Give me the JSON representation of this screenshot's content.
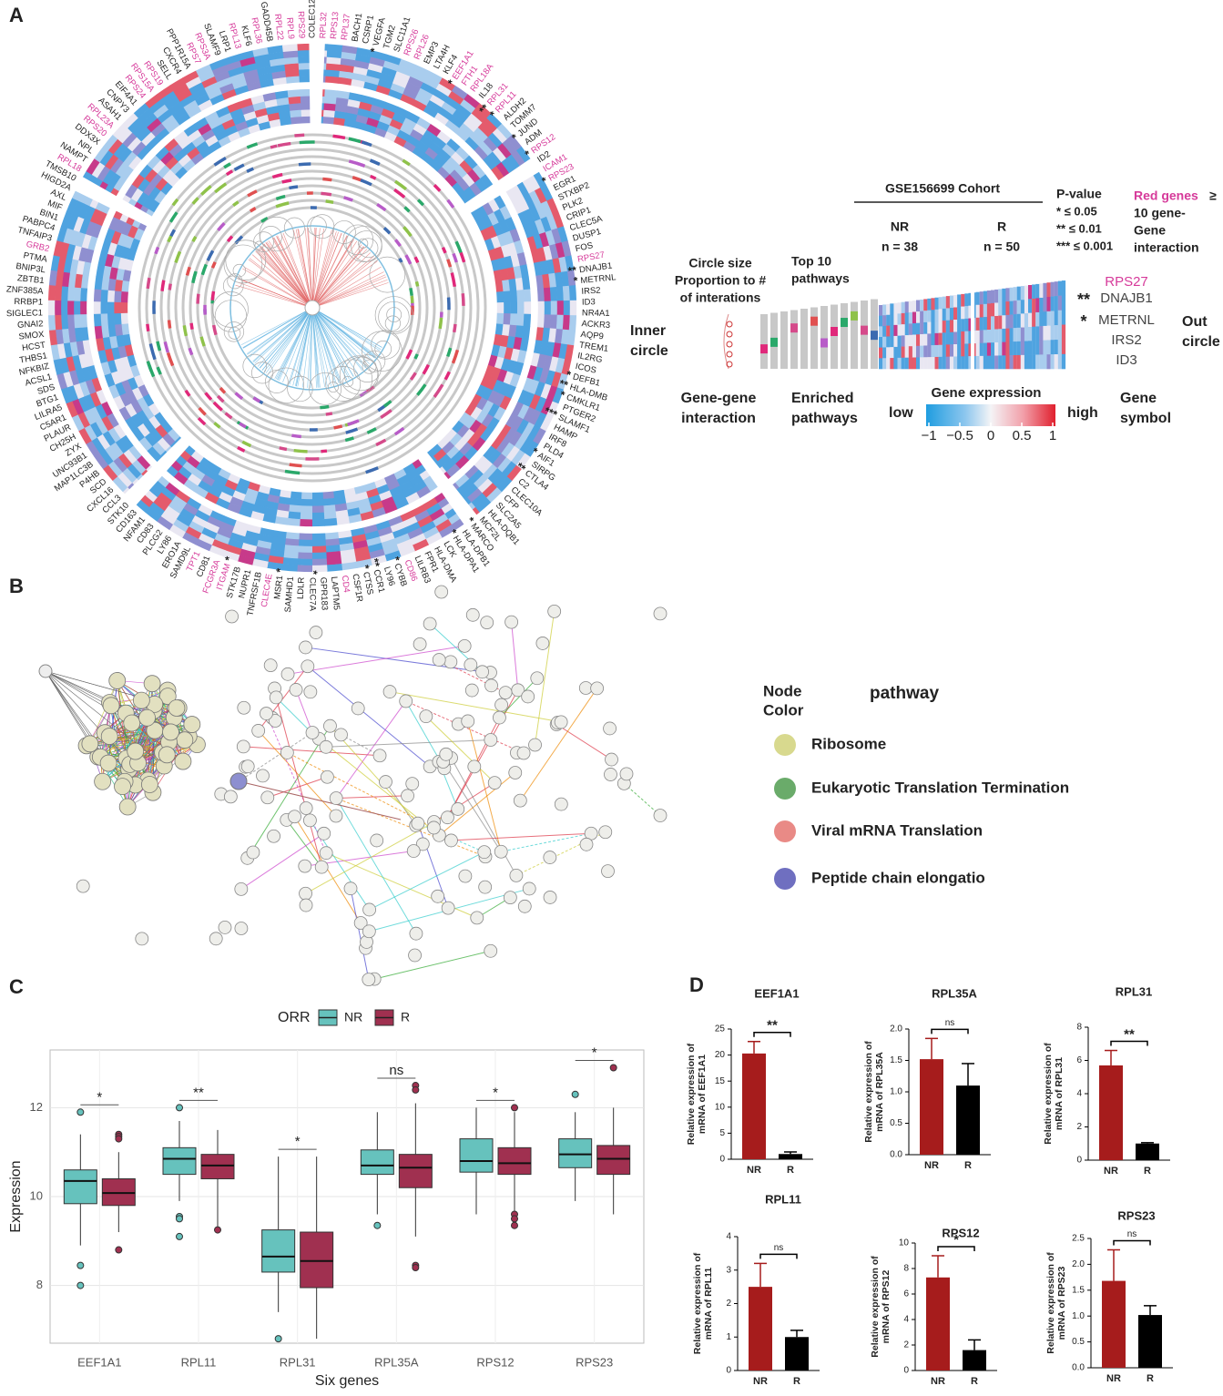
{
  "circos_figure": {
    "panel_label": "A",
    "genes": [
      {
        "name": "COLEC12"
      },
      {
        "name": "RPL32",
        "red": true
      },
      {
        "name": "RPS13",
        "red": true
      },
      {
        "name": "RPL37",
        "red": true
      },
      {
        "name": "BACH1"
      },
      {
        "name": "CSRP1"
      },
      {
        "name": "VEGFA",
        "sig": "*"
      },
      {
        "name": "TGM2"
      },
      {
        "name": "SLC11A1"
      },
      {
        "name": "RPS26",
        "red": true
      },
      {
        "name": "RPL26",
        "red": true
      },
      {
        "name": "EMP3"
      },
      {
        "name": "LTA4H"
      },
      {
        "name": "KLF4"
      },
      {
        "name": "EEF1A1",
        "red": true,
        "sig": "*"
      },
      {
        "name": "FTH1",
        "red": true
      },
      {
        "name": "RPL18A",
        "red": true
      },
      {
        "name": "IL18"
      },
      {
        "name": "RPL31",
        "red": true,
        "sig": "**"
      },
      {
        "name": "RPL11",
        "red": true,
        "sig": "*"
      },
      {
        "name": "ALDH2"
      },
      {
        "name": "TOMM7"
      },
      {
        "name": "JUND",
        "sig": "*"
      },
      {
        "name": "ADM"
      },
      {
        "name": "RPS12",
        "red": true,
        "sig": "*"
      },
      {
        "name": "ID2"
      },
      {
        "name": "ICAM1",
        "red": true
      },
      {
        "name": "RPS23",
        "red": true,
        "sig": "*"
      },
      {
        "name": "EGR1"
      },
      {
        "name": "STXBP2"
      },
      {
        "name": "PLK2"
      },
      {
        "name": "CRIP1"
      },
      {
        "name": "CLEC5A"
      },
      {
        "name": "DUSP1"
      },
      {
        "name": "FOS"
      },
      {
        "name": "RPS27",
        "red": true
      },
      {
        "name": "DNAJB1",
        "sig": "**"
      },
      {
        "name": "METRNL",
        "sig": "*"
      },
      {
        "name": "IRS2"
      },
      {
        "name": "ID3"
      },
      {
        "name": "NR4A1"
      },
      {
        "name": "ACKR3"
      },
      {
        "name": "AQP9"
      },
      {
        "name": "TREM1"
      },
      {
        "name": "IL2RG"
      },
      {
        "name": "ICOS"
      },
      {
        "name": "DEFB1",
        "sig": "*"
      },
      {
        "name": "HLA-DMB",
        "sig": "**"
      },
      {
        "name": "CMKLR1",
        "sig": "*"
      },
      {
        "name": "PTGER2"
      },
      {
        "name": "SLAMF1",
        "sig": "***"
      },
      {
        "name": "HAMP"
      },
      {
        "name": "IRF8"
      },
      {
        "name": "PLD4"
      },
      {
        "name": "AIF1",
        "sig": "*"
      },
      {
        "name": "SIRPG"
      },
      {
        "name": "CTLA4",
        "sig": "**"
      },
      {
        "name": "C2"
      },
      {
        "name": "CLEC10A"
      },
      {
        "name": "CFP"
      },
      {
        "name": "SLC2A5"
      },
      {
        "name": "HLA-DQB1"
      },
      {
        "name": "MCF2L"
      },
      {
        "name": "MARCO",
        "sig": "*"
      },
      {
        "name": "HLA-DPB1"
      },
      {
        "name": "HLA-DPA1",
        "sig": "*"
      },
      {
        "name": "LCK"
      },
      {
        "name": "HLA-DMA"
      },
      {
        "name": "FPR1"
      },
      {
        "name": "LILRB3"
      },
      {
        "name": "CD86",
        "red": true
      },
      {
        "name": "CYBB",
        "sig": "*"
      },
      {
        "name": "LY96"
      },
      {
        "name": "CCR1",
        "sig": "**"
      },
      {
        "name": "CTSS",
        "sig": "*"
      },
      {
        "name": "CSF1R"
      },
      {
        "name": "CD4",
        "red": true
      },
      {
        "name": "LAPTM5"
      },
      {
        "name": "GPR183"
      },
      {
        "name": "CLEC7A",
        "sig": "*"
      },
      {
        "name": "LDLR"
      },
      {
        "name": "SAMHD1"
      },
      {
        "name": "MSR1",
        "sig": "*"
      },
      {
        "name": "CLEC4E",
        "red": true
      },
      {
        "name": "TNFRSF1B"
      },
      {
        "name": "NUPR1"
      },
      {
        "name": "STK17B"
      },
      {
        "name": "ITGAM",
        "red": true,
        "sig": "*"
      },
      {
        "name": "FCGR3A",
        "red": true
      },
      {
        "name": "CD81"
      },
      {
        "name": "TPT1",
        "red": true
      },
      {
        "name": "SAMD9L"
      },
      {
        "name": "ERO1A"
      },
      {
        "name": "LY86"
      },
      {
        "name": "PLCG2"
      },
      {
        "name": "CD83"
      },
      {
        "name": "NFAM1"
      },
      {
        "name": "CD163"
      },
      {
        "name": "STK10"
      },
      {
        "name": "CCL3"
      },
      {
        "name": "CXCL16"
      },
      {
        "name": "SCD"
      },
      {
        "name": "P4HB"
      },
      {
        "name": "MAP1LC3B"
      },
      {
        "name": "UNC93B1"
      },
      {
        "name": "ZYX"
      },
      {
        "name": "CH25H"
      },
      {
        "name": "PLAUR"
      },
      {
        "name": "C5AR1"
      },
      {
        "name": "LILRA5"
      },
      {
        "name": "BTG1"
      },
      {
        "name": "SDS"
      },
      {
        "name": "ACSL1"
      },
      {
        "name": "NFKBIZ"
      },
      {
        "name": "THBS1"
      },
      {
        "name": "HCST"
      },
      {
        "name": "SMOX"
      },
      {
        "name": "GNAI2"
      },
      {
        "name": "SIGLEC1"
      },
      {
        "name": "RRBP1"
      },
      {
        "name": "ZNF385A"
      },
      {
        "name": "ZBTB1"
      },
      {
        "name": "BNIP3L"
      },
      {
        "name": "PTMA"
      },
      {
        "name": "GRB2",
        "red": true
      },
      {
        "name": "TNFAIP3"
      },
      {
        "name": "PABPC4"
      },
      {
        "name": "BIN1"
      },
      {
        "name": "MIF"
      },
      {
        "name": "AXL"
      },
      {
        "name": "HIGD2A"
      },
      {
        "name": "TMSB10"
      },
      {
        "name": "RPL18",
        "red": true
      },
      {
        "name": "NAMPT"
      },
      {
        "name": "NPL"
      },
      {
        "name": "DDX3X"
      },
      {
        "name": "RPS20",
        "red": true
      },
      {
        "name": "RPL23A",
        "red": true
      },
      {
        "name": "ASAH1"
      },
      {
        "name": "CNPY3"
      },
      {
        "name": "EIF4A1"
      },
      {
        "name": "RPS24",
        "red": true
      },
      {
        "name": "RPS15A",
        "red": true
      },
      {
        "name": "RPS19",
        "red": true
      },
      {
        "name": "SELL"
      },
      {
        "name": "CXCR4"
      },
      {
        "name": "PPP1R15A"
      },
      {
        "name": "RPS7",
        "red": true
      },
      {
        "name": "RPS3A",
        "red": true
      },
      {
        "name": "SLAMF9"
      },
      {
        "name": "LRP1"
      },
      {
        "name": "RPL13",
        "red": true
      },
      {
        "name": "KLF6"
      },
      {
        "name": "RPL36",
        "red": true
      },
      {
        "name": "GADD45B"
      },
      {
        "name": "RPL22",
        "red": true
      },
      {
        "name": "RPL9",
        "red": true
      },
      {
        "name": "RPS29",
        "red": true
      }
    ],
    "legend": {
      "cohort": "GSE156699 Cohort",
      "groups": [
        {
          "name": "NR",
          "n": "n = 38"
        },
        {
          "name": "R",
          "n": "n = 50"
        }
      ],
      "pvalue_title": "P-value",
      "pvalue_levels": [
        "* ≤ 0.05",
        "** ≤ 0.01",
        "*** ≤ 0.001"
      ],
      "red_genes_label": "Red genes",
      "red_genes_note": [
        "≥",
        "10 gene-",
        "Gene",
        "interaction"
      ],
      "circle_size_note": [
        "Circle size",
        "Proportion to #",
        "of interations"
      ],
      "pathways_note": [
        "Top 10",
        "pathways"
      ],
      "inner": [
        "Inner",
        "circle"
      ],
      "outer": [
        "Out",
        "circle"
      ],
      "bottom_labels": [
        [
          "Gene-gene",
          "interaction"
        ],
        [
          "Enriched",
          "pathways"
        ],
        [
          "Gene",
          "symbol"
        ]
      ],
      "expression_title": "Gene expression",
      "low": "low",
      "high": "high",
      "colorbar_lim": [
        -1,
        1
      ],
      "colorbar_ticks": [
        {
          "value": -1,
          "label": "−1"
        },
        {
          "value": -0.5,
          "label": "−0.5"
        },
        0,
        0.5,
        1
      ],
      "example_genes": [
        {
          "name": "RPS27",
          "red": true
        },
        {
          "name": "DNAJB1",
          "sig": "**"
        },
        {
          "name": "METRNL",
          "sig": "*"
        },
        {
          "name": "IRS2"
        },
        {
          "name": "ID3"
        }
      ]
    }
  },
  "network_figure": {
    "panel_label": "B",
    "legend_title": [
      "Node",
      "Color"
    ],
    "legend_header": "pathway",
    "pathways": [
      {
        "name": "Ribosome",
        "color": "#d8d98e"
      },
      {
        "name": "Eukaryotic Translation Termination",
        "color": "#6aab6a"
      },
      {
        "name": "Viral mRNA Translation",
        "color": "#e98a86"
      },
      {
        "name": "Peptide chain elongatio",
        "color": "#6f6fc0"
      }
    ]
  },
  "chart_data": [
    {
      "type": "box",
      "panel_label": "C",
      "legend_title": "ORR",
      "xlabel": "Six genes",
      "ylabel": "Expression",
      "categories": [
        "EEF1A1",
        "RPL11",
        "RPL31",
        "RPL35A",
        "RPS12",
        "RPS23"
      ],
      "ylim": [
        6.7,
        13.3
      ],
      "yticks": [
        8,
        10,
        12
      ],
      "grid": true,
      "series": [
        {
          "name": "NR",
          "color": "#66c2bd",
          "boxes": [
            {
              "q1": 9.84,
              "median": 10.35,
              "q3": 10.6,
              "whislo": 8.9,
              "whishi": 11.4,
              "outliers": [
                11.9,
                8.45,
                8.0
              ]
            },
            {
              "q1": 10.5,
              "median": 10.85,
              "q3": 11.1,
              "whislo": 9.9,
              "whishi": 11.7,
              "outliers": [
                12.0,
                9.55,
                9.5,
                9.1
              ]
            },
            {
              "q1": 8.3,
              "median": 8.65,
              "q3": 9.25,
              "whislo": 7.4,
              "whishi": 10.9,
              "outliers": [
                6.8
              ]
            },
            {
              "q1": 10.5,
              "median": 10.7,
              "q3": 11.05,
              "whislo": 9.6,
              "whishi": 11.9,
              "outliers": [
                9.35
              ]
            },
            {
              "q1": 10.55,
              "median": 10.8,
              "q3": 11.3,
              "whislo": 9.6,
              "whishi": 12.0,
              "outliers": []
            },
            {
              "q1": 10.65,
              "median": 10.95,
              "q3": 11.3,
              "whislo": 9.9,
              "whishi": 11.9,
              "outliers": [
                12.3
              ]
            }
          ]
        },
        {
          "name": "R",
          "color": "#a03050",
          "boxes": [
            {
              "q1": 9.8,
              "median": 10.08,
              "q3": 10.4,
              "whislo": 9.2,
              "whishi": 11.0,
              "outliers": [
                11.4,
                11.35,
                11.3,
                8.8
              ]
            },
            {
              "q1": 10.4,
              "median": 10.7,
              "q3": 10.95,
              "whislo": 9.3,
              "whishi": 11.5,
              "outliers": [
                9.25
              ]
            },
            {
              "q1": 7.95,
              "median": 8.55,
              "q3": 9.2,
              "whislo": 6.8,
              "whishi": 10.9,
              "outliers": []
            },
            {
              "q1": 10.2,
              "median": 10.65,
              "q3": 10.95,
              "whislo": 9.1,
              "whishi": 12.1,
              "outliers": [
                12.5,
                12.4,
                8.45,
                8.4
              ]
            },
            {
              "q1": 10.5,
              "median": 10.75,
              "q3": 11.1,
              "whislo": 9.6,
              "whishi": 11.9,
              "outliers": [
                12.0,
                9.6,
                9.5,
                9.35
              ]
            },
            {
              "q1": 10.5,
              "median": 10.85,
              "q3": 11.15,
              "whislo": 9.6,
              "whishi": 12.0,
              "outliers": [
                12.9
              ]
            }
          ]
        }
      ],
      "significance": [
        "*",
        "**",
        "*",
        "ns",
        "*",
        "*"
      ]
    },
    {
      "type": "bar",
      "panel_label": "D",
      "title": "EEF1A1",
      "ylabel": [
        "Relative expression of",
        "mRNA of EEF1A1"
      ],
      "categories": [
        "NR",
        "R"
      ],
      "values": [
        20.3,
        1.0
      ],
      "errors": [
        2.3,
        0.4
      ],
      "colors": [
        "#a61c1c",
        "#000000"
      ],
      "ylim": [
        0,
        25
      ],
      "yticks": [
        0,
        5,
        10,
        15,
        20,
        25
      ],
      "significance": "**"
    },
    {
      "type": "bar",
      "title": "RPL35A",
      "ylabel": [
        "Relative expression of",
        "mRNA of RPL35A"
      ],
      "categories": [
        "NR",
        "R"
      ],
      "values": [
        1.52,
        1.1
      ],
      "errors": [
        0.33,
        0.35
      ],
      "colors": [
        "#a61c1c",
        "#000000"
      ],
      "ylim": [
        0,
        2
      ],
      "yticks": [
        {
          "value": 0,
          "label": "0.0"
        },
        0.5,
        {
          "value": 1,
          "label": "1.0"
        },
        1.5,
        {
          "value": 2,
          "label": "2.0"
        }
      ],
      "significance": "ns"
    },
    {
      "type": "bar",
      "title": "RPL31",
      "ylabel": [
        "Relative expression of",
        "mRNA of RPL31"
      ],
      "categories": [
        "NR",
        "R"
      ],
      "values": [
        5.7,
        1.0
      ],
      "errors": [
        0.9,
        0.05
      ],
      "colors": [
        "#a61c1c",
        "#000000"
      ],
      "ylim": [
        0,
        8
      ],
      "yticks": [
        0,
        2,
        4,
        6,
        8
      ],
      "significance": "**"
    },
    {
      "type": "bar",
      "title": "RPL11",
      "ylabel": [
        "Relative expression of",
        "mRNA of RPL11"
      ],
      "categories": [
        "NR",
        "R"
      ],
      "values": [
        2.5,
        1.0
      ],
      "errors": [
        0.7,
        0.2
      ],
      "colors": [
        "#a61c1c",
        "#000000"
      ],
      "ylim": [
        0,
        4
      ],
      "yticks": [
        0,
        1,
        2,
        3,
        4
      ],
      "significance": "ns"
    },
    {
      "type": "bar",
      "title": "RPS12",
      "ylabel": [
        "Relative expression of",
        "mRNA of RPS12"
      ],
      "categories": [
        "NR",
        "R"
      ],
      "values": [
        7.3,
        1.6
      ],
      "errors": [
        1.7,
        0.8
      ],
      "colors": [
        "#a61c1c",
        "#000000"
      ],
      "ylim": [
        0,
        10
      ],
      "yticks": [
        0,
        2,
        4,
        6,
        8,
        10
      ],
      "significance": "*"
    },
    {
      "type": "bar",
      "title": "RPS23",
      "ylabel": [
        "Relative expression of",
        "mRNA of RPS23"
      ],
      "categories": [
        "NR",
        "R"
      ],
      "values": [
        1.68,
        1.02
      ],
      "errors": [
        0.6,
        0.18
      ],
      "colors": [
        "#a61c1c",
        "#000000"
      ],
      "ylim": [
        0,
        2.5
      ],
      "yticks": [
        {
          "value": 0,
          "label": "0.0"
        },
        0.5,
        {
          "value": 1,
          "label": "1.0"
        },
        1.5,
        {
          "value": 2,
          "label": "2.0"
        },
        2.5
      ],
      "significance": "ns"
    }
  ]
}
